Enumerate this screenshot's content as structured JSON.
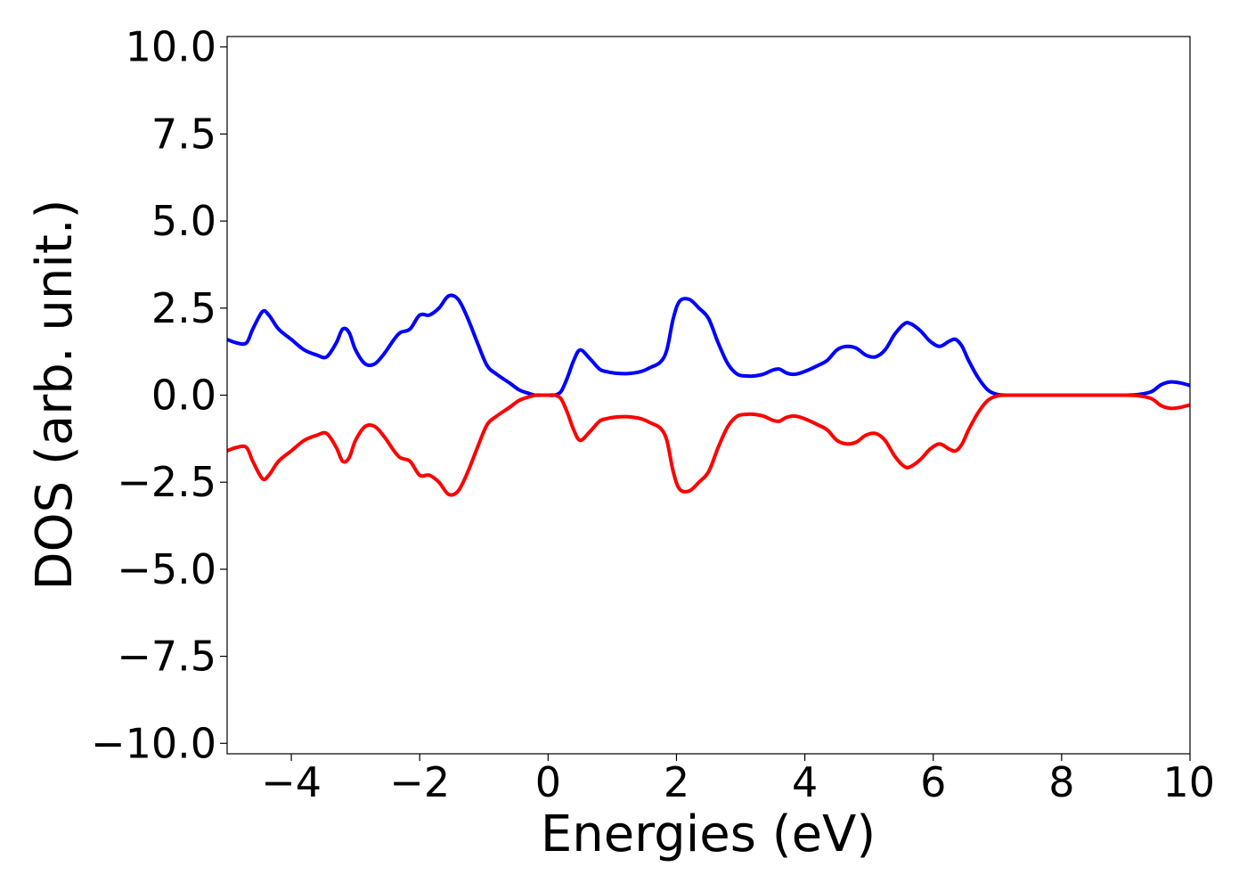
{
  "chart_data": {
    "type": "line",
    "xlabel": "Energies (eV)",
    "ylabel": "DOS (arb. unit.)",
    "xlim": [
      -5,
      10
    ],
    "ylim": [
      -10.3,
      10.3
    ],
    "xticks": [
      -4,
      -2,
      0,
      2,
      4,
      6,
      8,
      10
    ],
    "yticks": [
      -10.0,
      -7.5,
      -5.0,
      -2.5,
      0.0,
      2.5,
      5.0,
      7.5,
      10.0
    ],
    "grid": false,
    "legend": "none",
    "series": [
      {
        "color": "#0000ff",
        "x": [
          -5.0,
          -4.85,
          -4.7,
          -4.6,
          -4.45,
          -4.35,
          -4.2,
          -4.0,
          -3.8,
          -3.6,
          -3.45,
          -3.3,
          -3.2,
          -3.1,
          -3.0,
          -2.85,
          -2.7,
          -2.55,
          -2.4,
          -2.3,
          -2.15,
          -2.0,
          -1.85,
          -1.7,
          -1.55,
          -1.4,
          -1.25,
          -1.1,
          -0.95,
          -0.8,
          -0.6,
          -0.45,
          -0.3,
          -0.2,
          -0.1,
          0.0,
          0.1,
          0.2,
          0.3,
          0.4,
          0.5,
          0.65,
          0.8,
          0.9,
          1.05,
          1.25,
          1.45,
          1.6,
          1.75,
          1.85,
          1.95,
          2.05,
          2.2,
          2.35,
          2.5,
          2.65,
          2.8,
          2.95,
          3.1,
          3.2,
          3.35,
          3.5,
          3.6,
          3.7,
          3.8,
          3.9,
          4.05,
          4.2,
          4.35,
          4.5,
          4.65,
          4.8,
          4.95,
          5.1,
          5.25,
          5.4,
          5.55,
          5.65,
          5.8,
          5.95,
          6.1,
          6.25,
          6.35,
          6.45,
          6.55,
          6.7,
          6.85,
          7.0,
          7.2,
          7.5,
          8.0,
          8.5,
          9.0,
          9.2,
          9.4,
          9.55,
          9.7,
          9.85,
          10.0
        ],
        "y": [
          1.6,
          1.5,
          1.5,
          1.9,
          2.4,
          2.3,
          1.9,
          1.6,
          1.3,
          1.15,
          1.1,
          1.5,
          1.9,
          1.8,
          1.3,
          0.9,
          0.9,
          1.2,
          1.6,
          1.8,
          1.9,
          2.3,
          2.3,
          2.5,
          2.85,
          2.75,
          2.2,
          1.5,
          0.85,
          0.6,
          0.35,
          0.15,
          0.05,
          0.0,
          0.0,
          0.0,
          0.0,
          0.1,
          0.5,
          1.0,
          1.3,
          1.05,
          0.75,
          0.68,
          0.63,
          0.62,
          0.68,
          0.8,
          0.95,
          1.3,
          2.2,
          2.7,
          2.75,
          2.5,
          2.2,
          1.5,
          0.9,
          0.6,
          0.55,
          0.55,
          0.6,
          0.72,
          0.75,
          0.65,
          0.6,
          0.62,
          0.72,
          0.85,
          1.0,
          1.3,
          1.4,
          1.35,
          1.15,
          1.1,
          1.3,
          1.75,
          2.05,
          2.05,
          1.85,
          1.55,
          1.4,
          1.55,
          1.6,
          1.4,
          1.0,
          0.5,
          0.15,
          0.02,
          0.0,
          0.0,
          0.0,
          0.0,
          0.0,
          0.02,
          0.1,
          0.3,
          0.38,
          0.35,
          0.28
        ]
      },
      {
        "color": "#ff0000",
        "x": [
          -5.0,
          -4.85,
          -4.7,
          -4.6,
          -4.45,
          -4.35,
          -4.2,
          -4.0,
          -3.8,
          -3.6,
          -3.45,
          -3.3,
          -3.2,
          -3.1,
          -3.0,
          -2.85,
          -2.7,
          -2.55,
          -2.4,
          -2.3,
          -2.15,
          -2.0,
          -1.85,
          -1.7,
          -1.55,
          -1.4,
          -1.25,
          -1.1,
          -0.95,
          -0.8,
          -0.6,
          -0.45,
          -0.3,
          -0.2,
          -0.1,
          0.0,
          0.1,
          0.2,
          0.3,
          0.4,
          0.5,
          0.65,
          0.8,
          0.9,
          1.05,
          1.25,
          1.45,
          1.6,
          1.75,
          1.85,
          1.95,
          2.05,
          2.2,
          2.35,
          2.5,
          2.65,
          2.8,
          2.95,
          3.1,
          3.2,
          3.35,
          3.5,
          3.6,
          3.7,
          3.8,
          3.9,
          4.05,
          4.2,
          4.35,
          4.5,
          4.65,
          4.8,
          4.95,
          5.1,
          5.25,
          5.4,
          5.55,
          5.65,
          5.8,
          5.95,
          6.1,
          6.25,
          6.35,
          6.45,
          6.55,
          6.7,
          6.85,
          7.0,
          7.2,
          7.5,
          8.0,
          8.5,
          9.0,
          9.2,
          9.4,
          9.55,
          9.7,
          9.85,
          10.0
        ],
        "y": [
          -1.6,
          -1.5,
          -1.5,
          -1.9,
          -2.4,
          -2.3,
          -1.9,
          -1.6,
          -1.3,
          -1.15,
          -1.1,
          -1.5,
          -1.9,
          -1.8,
          -1.3,
          -0.9,
          -0.9,
          -1.2,
          -1.6,
          -1.8,
          -1.9,
          -2.3,
          -2.3,
          -2.5,
          -2.85,
          -2.75,
          -2.2,
          -1.5,
          -0.85,
          -0.6,
          -0.35,
          -0.15,
          -0.05,
          0.0,
          0.0,
          0.0,
          0.0,
          -0.1,
          -0.5,
          -1.0,
          -1.3,
          -1.05,
          -0.75,
          -0.68,
          -0.63,
          -0.62,
          -0.68,
          -0.8,
          -0.95,
          -1.3,
          -2.2,
          -2.7,
          -2.75,
          -2.5,
          -2.2,
          -1.5,
          -0.9,
          -0.6,
          -0.55,
          -0.55,
          -0.6,
          -0.72,
          -0.75,
          -0.65,
          -0.6,
          -0.62,
          -0.72,
          -0.85,
          -1.0,
          -1.3,
          -1.4,
          -1.35,
          -1.15,
          -1.1,
          -1.3,
          -1.75,
          -2.05,
          -2.05,
          -1.85,
          -1.55,
          -1.4,
          -1.55,
          -1.6,
          -1.4,
          -1.0,
          -0.5,
          -0.15,
          -0.02,
          0.0,
          0.0,
          0.0,
          0.0,
          0.0,
          -0.02,
          -0.1,
          -0.3,
          -0.38,
          -0.35,
          -0.28
        ]
      }
    ]
  }
}
